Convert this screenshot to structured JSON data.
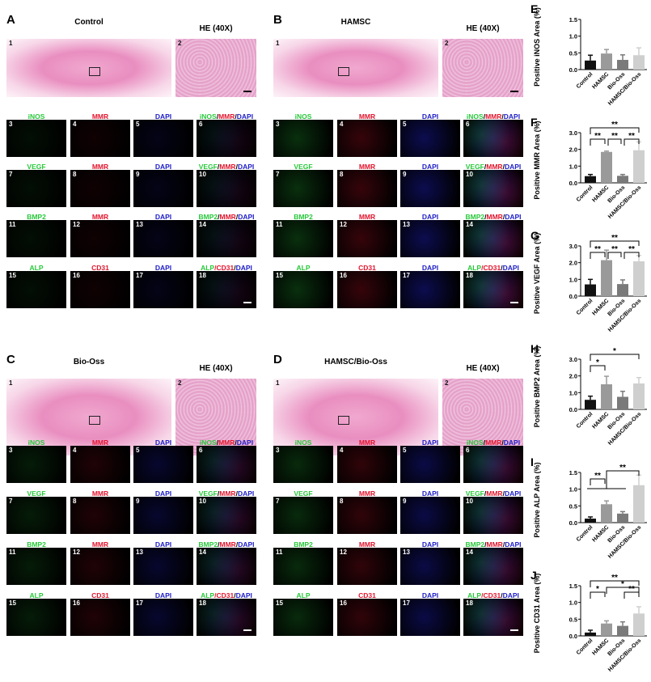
{
  "channel_colors": {
    "green": "#27c93a",
    "red": "#e3142c",
    "blue": "#2020c8"
  },
  "groups": [
    {
      "letter": "A",
      "title": "Control",
      "he_label": "HE (40X)",
      "he_nums": [
        "1",
        "2"
      ]
    },
    {
      "letter": "B",
      "title": "HAMSC",
      "he_label": "HE (40X)",
      "he_nums": [
        "1",
        "2"
      ]
    },
    {
      "letter": "C",
      "title": "Bio-Oss",
      "he_label": "HE (40X)",
      "he_nums": [
        "1",
        "2"
      ]
    },
    {
      "letter": "D",
      "title": "HAMSC/Bio-Oss",
      "he_label": "HE (40X)",
      "he_nums": [
        "1",
        "2"
      ]
    }
  ],
  "rows": [
    {
      "nums": [
        "3",
        "4",
        "5",
        "6"
      ],
      "labels": [
        [
          [
            "iNOS",
            "green"
          ]
        ],
        [
          [
            "MMR",
            "red"
          ]
        ],
        [
          [
            "DAPI",
            "blue"
          ]
        ],
        [
          [
            "iNOS",
            "green"
          ],
          [
            "/",
            "black"
          ],
          [
            "MMR",
            "red"
          ],
          [
            "/",
            "black"
          ],
          [
            "DAPI",
            "blue"
          ]
        ]
      ]
    },
    {
      "nums": [
        "7",
        "8",
        "9",
        "10"
      ],
      "labels": [
        [
          [
            "VEGF",
            "green"
          ]
        ],
        [
          [
            "MMR",
            "red"
          ]
        ],
        [
          [
            "DAPI",
            "blue"
          ]
        ],
        [
          [
            "VEGF",
            "green"
          ],
          [
            "/",
            "black"
          ],
          [
            "MMR",
            "red"
          ],
          [
            "/",
            "black"
          ],
          [
            "DAPI",
            "blue"
          ]
        ]
      ]
    },
    {
      "nums": [
        "11",
        "12",
        "13",
        "14"
      ],
      "labels": [
        [
          [
            "BMP2",
            "green"
          ]
        ],
        [
          [
            "MMR",
            "red"
          ]
        ],
        [
          [
            "DAPI",
            "blue"
          ]
        ],
        [
          [
            "BMP2",
            "green"
          ],
          [
            "/",
            "black"
          ],
          [
            "MMR",
            "red"
          ],
          [
            "/",
            "black"
          ],
          [
            "DAPI",
            "blue"
          ]
        ]
      ]
    },
    {
      "nums": [
        "15",
        "16",
        "17",
        "18"
      ],
      "labels": [
        [
          [
            "ALP",
            "green"
          ]
        ],
        [
          [
            "CD31",
            "red"
          ]
        ],
        [
          [
            "DAPI",
            "blue"
          ]
        ],
        [
          [
            "ALP",
            "green"
          ],
          [
            "/",
            "red"
          ],
          [
            "CD31",
            "red"
          ],
          [
            "/",
            "black"
          ],
          [
            "DAPI",
            "blue"
          ]
        ]
      ]
    }
  ],
  "chart_data": [
    {
      "panel": "E",
      "type": "bar",
      "ylabel": "Positive iNOS Area (%)",
      "categories": [
        "Control",
        "HAMSC",
        "Bio-Oss",
        "HAMSC/Bio-Oss"
      ],
      "values": [
        0.27,
        0.48,
        0.29,
        0.43
      ],
      "errors": [
        0.16,
        0.12,
        0.15,
        0.22
      ],
      "ylim": [
        0,
        1.5
      ],
      "yticks": [
        "0.0",
        "0.5",
        "1.0",
        "1.5"
      ],
      "significance": []
    },
    {
      "panel": "F",
      "type": "bar",
      "ylabel": "Positive MMR Area (%)",
      "categories": [
        "Control",
        "HAMSC",
        "Bio-Oss",
        "HAMSC/Bio-Oss"
      ],
      "values": [
        0.4,
        1.85,
        0.42,
        1.95
      ],
      "errors": [
        0.1,
        0.05,
        0.08,
        0.5
      ],
      "ylim": [
        0,
        3
      ],
      "yticks": [
        "0.0",
        "1.0",
        "2.0",
        "3.0"
      ],
      "significance": [
        {
          "from": 0,
          "to": 1,
          "label": "**"
        },
        {
          "from": 1,
          "to": 2,
          "label": "**"
        },
        {
          "from": 2,
          "to": 3,
          "label": "**"
        },
        {
          "from": 0,
          "to": 3,
          "label": "**"
        }
      ]
    },
    {
      "panel": "G",
      "type": "bar",
      "ylabel": "Positive VEGF Area (%)",
      "categories": [
        "Control",
        "HAMSC",
        "Bio-Oss",
        "HAMSC/Bio-Oss"
      ],
      "values": [
        0.7,
        2.15,
        0.72,
        2.08
      ],
      "errors": [
        0.3,
        0.6,
        0.25,
        0.35
      ],
      "ylim": [
        0,
        3
      ],
      "yticks": [
        "0.0",
        "1.0",
        "2.0",
        "3.0"
      ],
      "significance": [
        {
          "from": 0,
          "to": 1,
          "label": "**"
        },
        {
          "from": 1,
          "to": 2,
          "label": "**"
        },
        {
          "from": 2,
          "to": 3,
          "label": "**"
        },
        {
          "from": 0,
          "to": 3,
          "label": "**"
        }
      ]
    },
    {
      "panel": "H",
      "type": "bar",
      "ylabel": "Positive BMP2 Area (%)",
      "categories": [
        "Control",
        "HAMSC",
        "Bio-Oss",
        "HAMSC/Bio-Oss"
      ],
      "values": [
        0.57,
        1.5,
        0.75,
        1.55
      ],
      "errors": [
        0.22,
        0.48,
        0.33,
        0.35
      ],
      "ylim": [
        0,
        3
      ],
      "yticks": [
        "0.0",
        "1.0",
        "2.0",
        "3.0"
      ],
      "significance": [
        {
          "from": 0,
          "to": 1,
          "label": "*"
        },
        {
          "from": 0,
          "to": 3,
          "label": "*"
        }
      ]
    },
    {
      "panel": "I",
      "type": "bar",
      "ylabel": "Positive ALP Area (%)",
      "categories": [
        "Control",
        "HAMSC",
        "Bio-Oss",
        "HAMSC/Bio-Oss"
      ],
      "values": [
        0.12,
        0.55,
        0.27,
        1.12
      ],
      "errors": [
        0.05,
        0.1,
        0.06,
        0.3
      ],
      "ylim": [
        0,
        1.5
      ],
      "yticks": [
        "0.0",
        "0.5",
        "1.0",
        "1.5"
      ],
      "significance": [
        {
          "from": 0,
          "to": 1,
          "label": "**"
        },
        {
          "from": "0-2",
          "to": 3,
          "label": "**"
        }
      ]
    },
    {
      "panel": "J",
      "type": "bar",
      "ylabel": "Positive CD31 Area (%)",
      "categories": [
        "Control",
        "HAMSC",
        "Bio-Oss",
        "HAMSC/Bio-Oss"
      ],
      "values": [
        0.1,
        0.37,
        0.3,
        0.67
      ],
      "errors": [
        0.07,
        0.08,
        0.12,
        0.2
      ],
      "ylim": [
        0,
        1.5
      ],
      "yticks": [
        "0.0",
        "0.5",
        "1.0",
        "1.5"
      ],
      "significance": [
        {
          "from": 0,
          "to": 1,
          "label": "*"
        },
        {
          "from": 2,
          "to": 3,
          "label": "**"
        },
        {
          "from": 1,
          "to": 3,
          "label": "*"
        },
        {
          "from": 0,
          "to": 3,
          "label": "**"
        }
      ]
    }
  ],
  "bar_colors": [
    "#111111",
    "#9a9a9a",
    "#7a7a7a",
    "#cfcfcf"
  ]
}
